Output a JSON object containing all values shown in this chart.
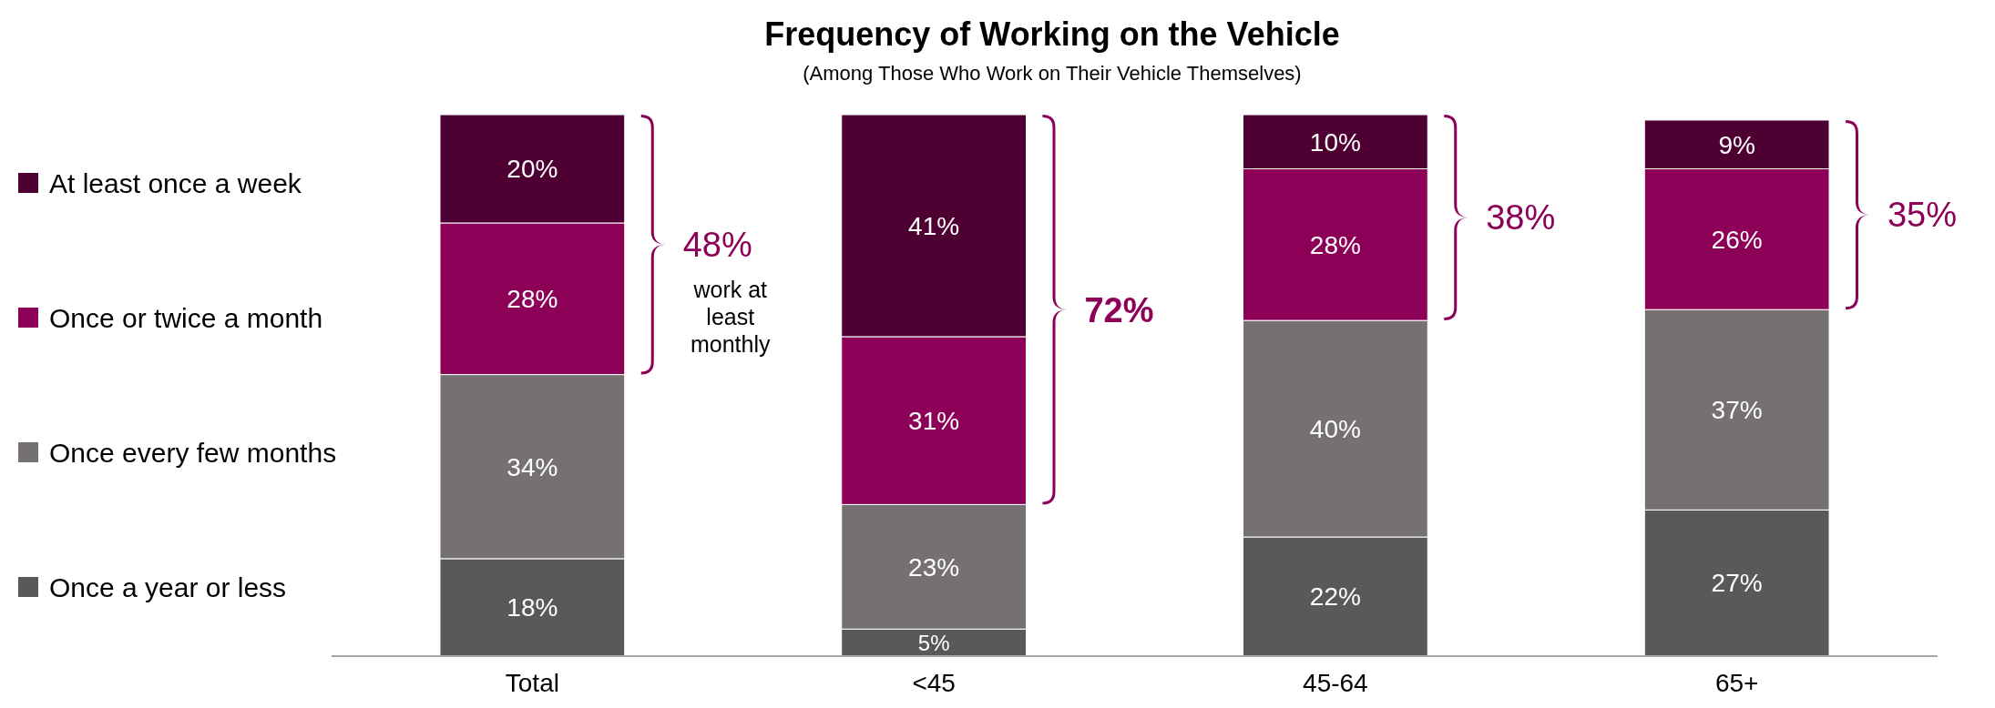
{
  "chart_data": {
    "type": "bar",
    "stacked": true,
    "title": "Frequency of Working on the Vehicle",
    "subtitle": "(Among Those Who Work on Their Vehicle Themselves)",
    "categories": [
      "Total",
      "<45",
      "45-64",
      "65+"
    ],
    "series": [
      {
        "name": "Once a year or less",
        "color": "#595959",
        "values": [
          18,
          5,
          22,
          27
        ],
        "value_labels": [
          "18%",
          "5%",
          "22%",
          "27%"
        ]
      },
      {
        "name": "Once every few months",
        "color": "#767171",
        "values": [
          34,
          23,
          40,
          37
        ],
        "value_labels": [
          "34%",
          "23%",
          "40%",
          "37%"
        ]
      },
      {
        "name": "Once or twice a month",
        "color": "#8c0058",
        "values": [
          28,
          31,
          28,
          26
        ],
        "value_labels": [
          "28%",
          "31%",
          "28%",
          "26%"
        ]
      },
      {
        "name": "At least once a week",
        "color": "#4f0033",
        "values": [
          20,
          41,
          10,
          9
        ],
        "value_labels": [
          "20%",
          "41%",
          "10%",
          "9%"
        ]
      }
    ],
    "legend": "left",
    "annotations": [
      "48%",
      "work at least monthly",
      "72%",
      "38%",
      "35%"
    ]
  }
}
